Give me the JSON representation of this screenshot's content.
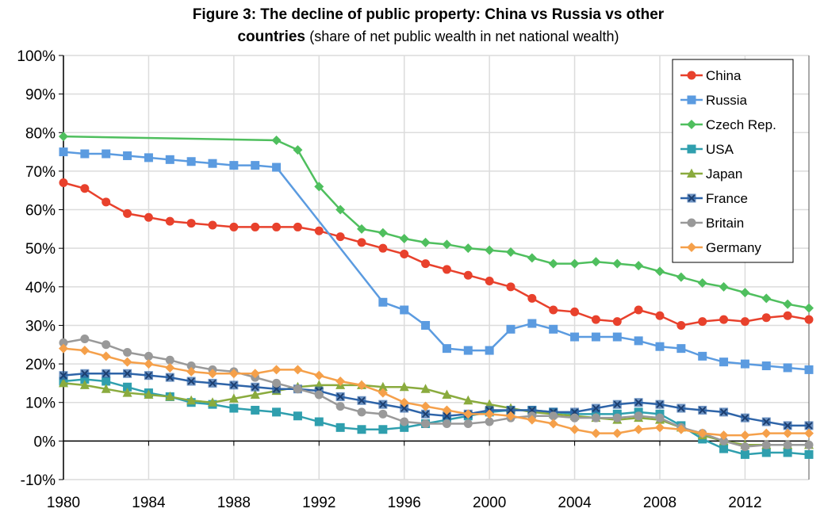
{
  "chart_data": {
    "type": "line",
    "title": "Figure 3: The decline of public property: China vs Russia vs other countries",
    "subtitle": "(share of net public wealth in net national wealth)",
    "xlim": [
      1980,
      2015
    ],
    "ylim": [
      -10,
      100
    ],
    "x_ticks": [
      "1980",
      "1984",
      "1988",
      "1992",
      "1996",
      "2000",
      "2004",
      "2008",
      "2012"
    ],
    "y_ticks": [
      "-10%",
      "0%",
      "10%",
      "20%",
      "30%",
      "40%",
      "50%",
      "60%",
      "70%",
      "80%",
      "90%",
      "100%"
    ],
    "grid": true,
    "legend": "top-right",
    "x": [
      1980,
      1981,
      1982,
      1983,
      1984,
      1985,
      1986,
      1987,
      1988,
      1989,
      1990,
      1991,
      1992,
      1993,
      1994,
      1995,
      1996,
      1997,
      1998,
      1999,
      2000,
      2001,
      2002,
      2003,
      2004,
      2005,
      2006,
      2007,
      2008,
      2009,
      2010,
      2011,
      2012,
      2013,
      2014,
      2015
    ],
    "series": [
      {
        "name": "China",
        "color": "#e8412c",
        "marker": "circle",
        "values": [
          67,
          65.5,
          62,
          59,
          58,
          57,
          56.5,
          56,
          55.5,
          55.5,
          55.5,
          55.5,
          54.5,
          53,
          51.5,
          50,
          48.5,
          46,
          44.5,
          43,
          41.5,
          40,
          37,
          34,
          33.5,
          31.5,
          31,
          34,
          32.5,
          30,
          31,
          31.5,
          31,
          32,
          32.5,
          31.5
        ]
      },
      {
        "name": "Russia",
        "color": "#5b9be0",
        "marker": "square",
        "values": [
          75,
          74.5,
          74.5,
          74,
          73.5,
          73,
          72.5,
          72,
          71.5,
          71.5,
          71,
          null,
          null,
          null,
          null,
          36,
          34,
          30,
          24,
          23.5,
          23.5,
          29,
          30.5,
          29,
          27,
          27,
          27,
          26,
          24.5,
          24,
          22,
          20.5,
          20,
          19.5,
          19,
          18.5
        ]
      },
      {
        "name": "Czech Rep.",
        "color": "#4fbf5e",
        "marker": "diamond",
        "values": [
          79,
          null,
          null,
          null,
          null,
          null,
          null,
          null,
          null,
          null,
          78,
          75.5,
          66,
          60,
          55,
          54,
          52.5,
          51.5,
          51,
          50,
          49.5,
          49,
          47.5,
          46,
          46,
          46.5,
          46,
          45.5,
          44,
          42.5,
          41,
          40,
          38.5,
          37,
          35.5,
          34.5
        ]
      },
      {
        "name": "USA",
        "color": "#2f9fae",
        "marker": "square",
        "values": [
          15.5,
          16,
          15.5,
          14,
          12.5,
          11.5,
          10,
          9.5,
          8.5,
          8,
          7.5,
          6.5,
          5,
          3.5,
          3,
          3,
          3.5,
          4.5,
          5.5,
          6.5,
          7.5,
          8,
          8,
          7.5,
          7,
          7,
          7,
          7.5,
          7,
          4,
          0.5,
          -2,
          -3.5,
          -3,
          -3,
          -3.5
        ]
      },
      {
        "name": "Japan",
        "color": "#8aab3e",
        "marker": "triangle",
        "values": [
          15,
          14.5,
          13.5,
          12.5,
          12,
          11.5,
          10.5,
          10,
          11,
          12,
          13,
          14,
          14.5,
          14.5,
          14.5,
          14,
          14,
          13.5,
          12,
          10.5,
          9.5,
          8.5,
          7.5,
          7,
          6.5,
          6,
          5.5,
          6,
          5.5,
          3.5,
          1.5,
          0,
          -1,
          -1,
          -1,
          -1
        ]
      },
      {
        "name": "France",
        "color": "#2e64a8",
        "marker": "x",
        "values": [
          17,
          17.5,
          17.5,
          17.5,
          17,
          16.5,
          15.5,
          15,
          14.5,
          14,
          13.5,
          13.5,
          13,
          11.5,
          10.5,
          9.5,
          8.5,
          7,
          6.5,
          7,
          8,
          8,
          8,
          7.5,
          7.5,
          8.5,
          9.5,
          10,
          9.5,
          8.5,
          8,
          7.5,
          6,
          5,
          4,
          4
        ]
      },
      {
        "name": "Britain",
        "color": "#999999",
        "marker": "circle",
        "values": [
          25.5,
          26.5,
          25,
          23,
          22,
          21,
          19.5,
          18.5,
          18,
          16.5,
          15,
          13.5,
          12,
          9,
          7.5,
          7,
          5,
          4.5,
          4.5,
          4.5,
          5,
          6,
          6.5,
          6.5,
          6,
          6,
          6,
          6.5,
          6,
          3.5,
          2,
          0,
          -1.5,
          -1,
          -1,
          -1
        ]
      },
      {
        "name": "Germany",
        "color": "#f5a04a",
        "marker": "diamond",
        "values": [
          24,
          23.5,
          22,
          20.5,
          20,
          19,
          18,
          17.5,
          17.5,
          17.5,
          18.5,
          18.5,
          17,
          15.5,
          14.5,
          12.5,
          10,
          9,
          8,
          7,
          7,
          6.5,
          5.5,
          4.5,
          3,
          2,
          2,
          3,
          3.5,
          3,
          2,
          1.5,
          1.5,
          2,
          2,
          2
        ]
      }
    ]
  }
}
